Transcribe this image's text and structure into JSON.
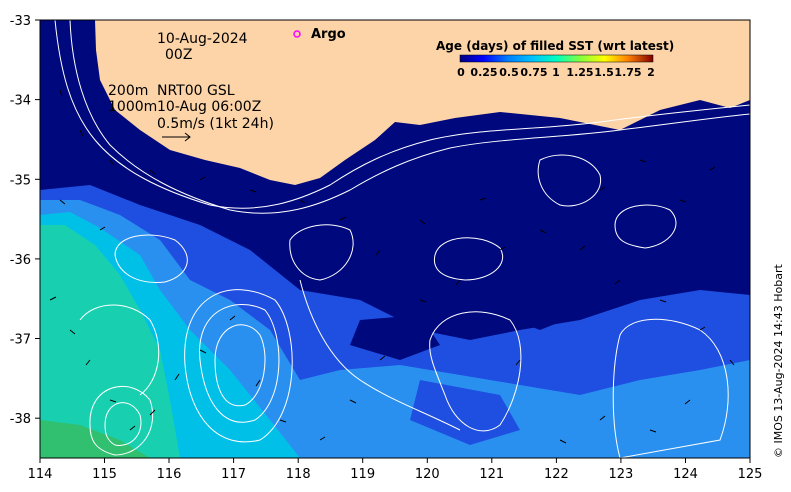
{
  "map": {
    "date": "10-Aug-2024",
    "time": "00Z",
    "depth_200": "200m",
    "depth_1000": "1000m",
    "product": "NRT00 GSL",
    "product_time": "10-Aug 06:00Z",
    "scale_label": "0.5m/s (1kt 24h)",
    "argo_label": "Argo",
    "credit": "© IMOS 13-Aug-2024 14:43 Hobart",
    "lon_ticks": [
      "114",
      "115",
      "116",
      "117",
      "118",
      "119",
      "120",
      "121",
      "122",
      "123",
      "124",
      "125"
    ],
    "lat_ticks": [
      "-33",
      "-34",
      "-35",
      "-36",
      "-37",
      "-38"
    ],
    "legend": {
      "title": "Age (days) of filled SST (wrt latest)",
      "ticks": [
        "0",
        "0.25",
        "0.5",
        "0.75",
        "1",
        "1.25",
        "1.5",
        "1.75",
        "2"
      ],
      "colors": [
        "#000080",
        "#0000ff",
        "#0080ff",
        "#00c0ff",
        "#00ffc0",
        "#80ff40",
        "#ffff00",
        "#ff8000",
        "#ff0000",
        "#800000"
      ]
    },
    "colors": {
      "land": "#fcd4a8",
      "ocean_deep": "#00087e",
      "ocean_blue": "#1f4fe0",
      "ocean_mid": "#2a90f0",
      "ocean_cyan": "#00c0e8",
      "ocean_teal": "#18d0b0",
      "ocean_green": "#30c070",
      "argo": "#ff00ff"
    }
  }
}
